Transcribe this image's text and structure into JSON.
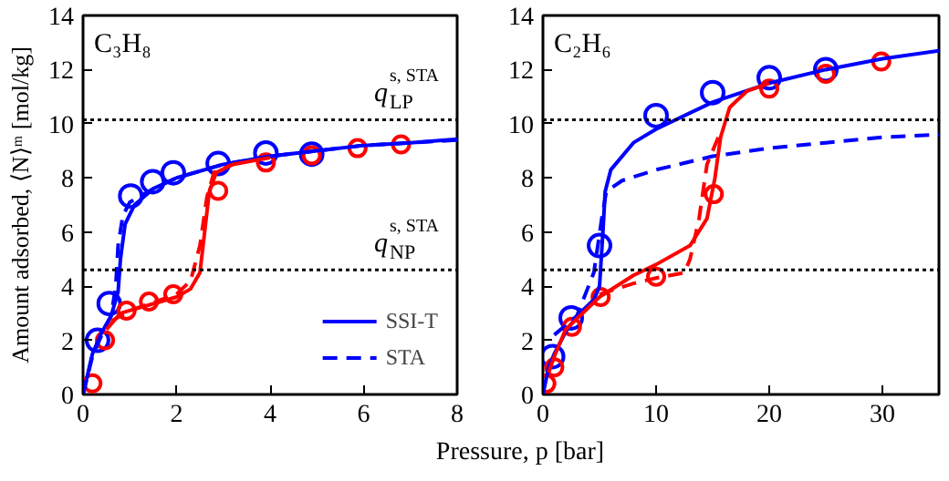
{
  "chart_data": [
    {
      "type": "line",
      "title": "C₃H₈",
      "xlabel": "Pressure, p [bar]",
      "ylabel": "Amount adsorbed, ⟨N⟩ᵐ [mol/kg]",
      "xlim": [
        0,
        8
      ],
      "ylim": [
        0,
        14
      ],
      "xticks": [
        0,
        2,
        4,
        6,
        8
      ],
      "yticks": [
        0,
        2,
        4,
        6,
        8,
        10,
        12,
        14
      ],
      "grid": false,
      "legend": "bottom right",
      "ref_lines": [
        {
          "axis": "y",
          "value": 10.15,
          "label": "q$^{s, STA}$$_{LP}$",
          "color": "#000000",
          "line_style": "dotted"
        },
        {
          "axis": "y",
          "value": 4.6,
          "label": "q$^{s, STA}$$_{NP}$",
          "color": "#000000",
          "line_style": "dotted"
        }
      ],
      "series": [
        {
          "type": "scatter",
          "marker": "circle",
          "color": "#0000ff",
          "x": [
            0.31,
            0.56,
            1.02,
            1.49,
            1.93,
            2.89,
            3.91,
            4.89
          ],
          "values": [
            2.0,
            3.36,
            7.33,
            7.86,
            8.19,
            8.53,
            8.92,
            8.88
          ]
        },
        {
          "type": "scatter",
          "marker": "circle",
          "color": "#ff0000",
          "x": [
            0.2,
            0.47,
            0.93,
            1.41,
            1.93,
            2.89,
            3.91,
            4.89,
            5.87,
            6.8
          ],
          "values": [
            0.41,
            2.0,
            3.1,
            3.43,
            3.7,
            7.52,
            8.57,
            8.83,
            9.1,
            9.24
          ]
        },
        {
          "name": "SSI-T",
          "line_style": "solid",
          "color": "#0000ff",
          "x": [
            0,
            0.2,
            0.4,
            0.6,
            0.75,
            0.8,
            0.9,
            1.1,
            1.5,
            2,
            3,
            4,
            5,
            6,
            7,
            8
          ],
          "values": [
            0,
            1.5,
            2.3,
            2.9,
            3.8,
            5.0,
            6.3,
            7.0,
            7.6,
            8.0,
            8.5,
            8.8,
            9.0,
            9.2,
            9.3,
            9.43
          ]
        },
        {
          "name": "STA",
          "line_style": "dashed",
          "color": "#0000ff",
          "x": [
            0,
            0.2,
            0.4,
            0.6,
            0.7,
            0.75,
            0.85,
            1.0,
            1.5,
            2,
            3,
            4,
            5,
            6,
            7,
            8
          ],
          "values": [
            0,
            1.4,
            2.2,
            2.9,
            4.0,
            5.5,
            6.6,
            7.1,
            7.6,
            8.0,
            8.5,
            8.8,
            9.0,
            9.2,
            9.3,
            9.4
          ]
        },
        {
          "line_style": "solid",
          "color": "#ff0000",
          "x": [
            0.5,
            0.8,
            1.2,
            1.6,
            2.0,
            2.3,
            2.5,
            2.6,
            2.7,
            2.85,
            3.2,
            4
          ],
          "values": [
            2.4,
            3.0,
            3.2,
            3.4,
            3.6,
            3.9,
            4.5,
            6.0,
            7.5,
            8.2,
            8.5,
            8.75
          ]
        },
        {
          "line_style": "dashed",
          "color": "#ff0000",
          "x": [
            0.6,
            1.0,
            1.5,
            2.0,
            2.3,
            2.5,
            2.65,
            2.8,
            3.2
          ],
          "values": [
            2.7,
            3.1,
            3.4,
            3.7,
            4.2,
            5.5,
            7.3,
            8.2,
            8.5
          ]
        }
      ]
    },
    {
      "type": "line",
      "title": "C₂H₆",
      "xlim": [
        0,
        35
      ],
      "ylim": [
        0,
        14
      ],
      "xticks": [
        0,
        10,
        20,
        30
      ],
      "yticks": [
        0,
        2,
        4,
        6,
        8,
        10,
        12,
        14
      ],
      "grid": false,
      "ref_lines": [
        {
          "axis": "y",
          "value": 10.15,
          "color": "#000000",
          "line_style": "dotted"
        },
        {
          "axis": "y",
          "value": 4.6,
          "color": "#000000",
          "line_style": "dotted"
        }
      ],
      "series": [
        {
          "type": "scatter",
          "marker": "circle",
          "color": "#0000ff",
          "x": [
            0.85,
            2.5,
            5.0,
            10.0,
            15.0,
            20.0,
            25.0
          ],
          "values": [
            1.4,
            2.83,
            5.5,
            10.3,
            11.15,
            11.7,
            12.0
          ]
        },
        {
          "type": "scatter",
          "marker": "circle",
          "color": "#ff0000",
          "x": [
            0.3,
            1.0,
            2.56,
            5.1,
            10.0,
            15.1,
            20.0,
            25.0,
            29.9
          ],
          "values": [
            0.4,
            1.0,
            2.5,
            3.6,
            4.35,
            7.4,
            11.3,
            11.85,
            12.3
          ]
        },
        {
          "line_style": "solid",
          "color": "#0000ff",
          "x": [
            0,
            0.5,
            1,
            2,
            3,
            4.5,
            5,
            5.3,
            5.5,
            6,
            8,
            10,
            15,
            20,
            25,
            30,
            35
          ],
          "values": [
            0,
            1.0,
            1.5,
            2.3,
            2.9,
            3.5,
            4.0,
            6.0,
            7.5,
            8.3,
            9.3,
            9.8,
            10.8,
            11.5,
            12.0,
            12.4,
            12.7
          ]
        },
        {
          "line_style": "dashed",
          "color": "#0000ff",
          "x": [
            1,
            3,
            4.5,
            5.2,
            5.6,
            7,
            10,
            15,
            20,
            25,
            30,
            35
          ],
          "values": [
            2.2,
            2.9,
            4.5,
            6.5,
            7.5,
            7.9,
            8.3,
            8.8,
            9.1,
            9.3,
            9.5,
            9.6
          ]
        },
        {
          "line_style": "solid",
          "color": "#ff0000",
          "x": [
            0.5,
            1,
            2,
            5,
            8,
            10,
            13,
            14.5,
            15.2,
            15.7,
            16.5,
            18,
            20
          ],
          "values": [
            0.8,
            1.4,
            2.4,
            3.6,
            4.4,
            4.8,
            5.5,
            6.5,
            8.0,
            9.5,
            10.6,
            11.2,
            11.5
          ]
        },
        {
          "line_style": "dashed",
          "color": "#ff0000",
          "x": [
            5,
            8,
            10,
            12.5,
            13,
            13.8,
            14.5,
            15.5
          ],
          "values": [
            3.7,
            4.1,
            4.3,
            4.5,
            5.0,
            6.5,
            8.5,
            9.5
          ]
        }
      ]
    }
  ]
}
